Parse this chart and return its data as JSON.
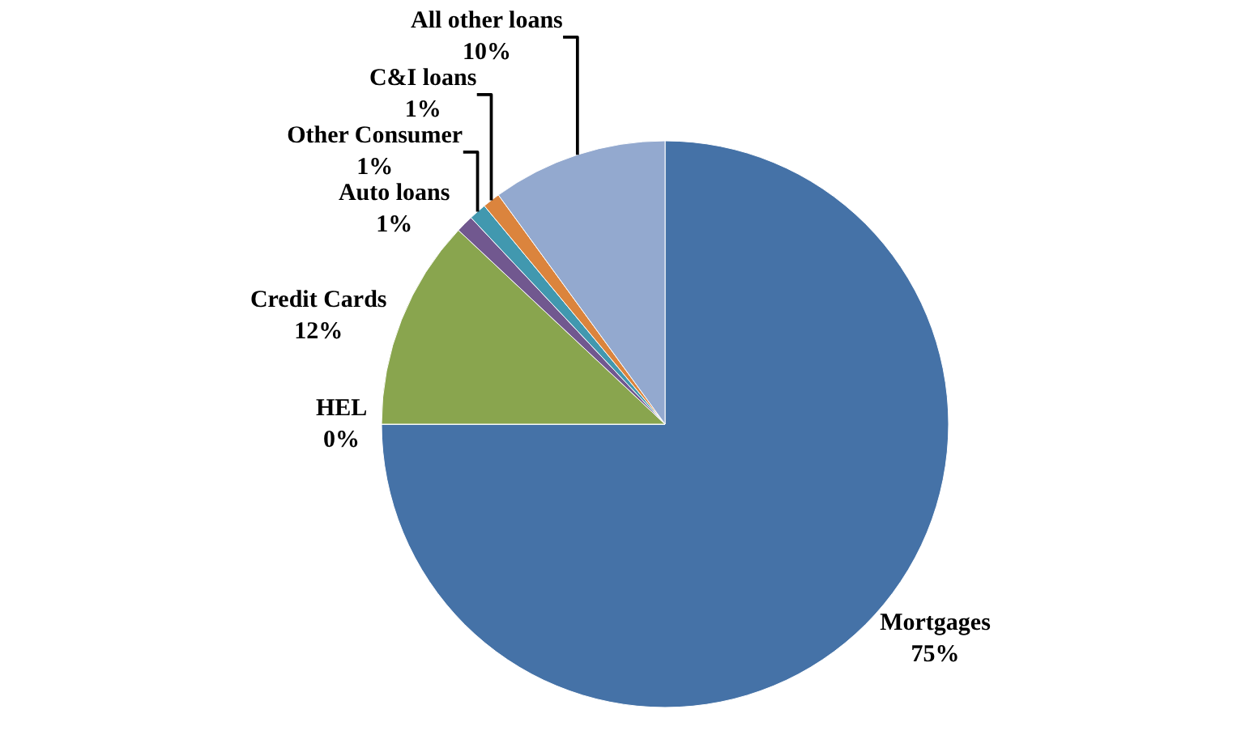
{
  "chart_data": {
    "type": "pie",
    "categories": [
      "Mortgages",
      "HEL",
      "Credit Cards",
      "Auto loans",
      "Other Consumer",
      "C&I loans",
      "All other loans"
    ],
    "values": [
      75,
      0,
      12,
      1,
      1,
      1,
      10
    ],
    "value_labels": [
      "75%",
      "0%",
      "12%",
      "1%",
      "1%",
      "1%",
      "10%"
    ],
    "colors": [
      "#4572a7",
      "#c0504d",
      "#89a54e",
      "#71588f",
      "#4198af",
      "#db843d",
      "#93a9cf"
    ],
    "legend": false
  }
}
